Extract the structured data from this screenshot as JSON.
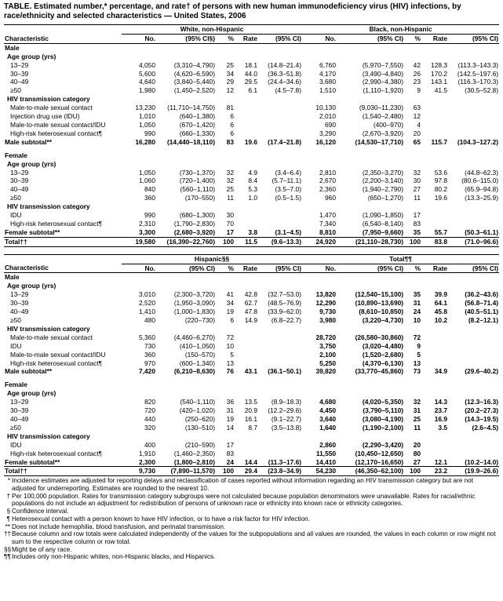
{
  "title": "TABLE. Estimated number,* percentage, and rate† of persons with new human immunodeficiency virus (HIV) infections, by race/ethnicity and selected characteristics — United States, 2006",
  "tables": [
    {
      "groups": [
        "White, non-Hispanic",
        "Black, non-Hispanic"
      ],
      "columns": [
        "Characteristic",
        "No.",
        "(95% CI§)",
        "%",
        "Rate",
        "(95% CI)",
        "No.",
        "(95% CI)",
        "%",
        "Rate",
        "(95% CI)"
      ],
      "rows": [
        {
          "kind": "group",
          "cells": [
            "Male"
          ]
        },
        {
          "kind": "subgroup",
          "cells": [
            "Age group (yrs)"
          ]
        },
        {
          "kind": "item",
          "cells": [
            "13–29",
            "4,050",
            "(3,310–4,790)",
            "25",
            "18.1",
            "(14.8–21.4)",
            "6,760",
            "(5,970–7,550)",
            "42",
            "128.3",
            "(113.3–143.3)"
          ]
        },
        {
          "kind": "item",
          "cells": [
            "30–39",
            "5,600",
            "(4,620–6,590)",
            "34",
            "44.0",
            "(36.3–51.8)",
            "4,170",
            "(3,490–4,840)",
            "26",
            "170.2",
            "(142.5–197.6)"
          ]
        },
        {
          "kind": "item",
          "cells": [
            "40–49",
            "4,640",
            "(3,840–5,440)",
            "29",
            "29.5",
            "(24.4–34.6)",
            "3,680",
            "(2,990–4,380)",
            "23",
            "143.1",
            "(116.3–170.3)"
          ]
        },
        {
          "kind": "item",
          "cells": [
            "≥50",
            "1,980",
            "(1,450–2,520)",
            "12",
            "6.1",
            "(4.5–7.8)",
            "1,510",
            "(1,110–1,920)",
            "9",
            "41.5",
            "(30.5–52.8)"
          ]
        },
        {
          "kind": "subgroup",
          "cells": [
            "HIV transmission category"
          ]
        },
        {
          "kind": "item",
          "cells": [
            "Male-to-male sexual contact",
            "13,230",
            "(11,710–14,750)",
            "81",
            null,
            null,
            "10,130",
            "(9,030–11,230)",
            "63",
            null,
            null
          ]
        },
        {
          "kind": "item",
          "cells": [
            "Injection drug use (IDU)",
            "1,010",
            "(640–1,380)",
            "6",
            null,
            null,
            "2,010",
            "(1,540–2,480)",
            "12",
            null,
            null
          ]
        },
        {
          "kind": "item",
          "cells": [
            "Male-to-male sexual contact/IDU",
            "1,050",
            "(670–1,420)",
            "6",
            null,
            null,
            "690",
            "(400–970)",
            "4",
            null,
            null
          ]
        },
        {
          "kind": "item",
          "cells": [
            "High-risk heterosexual contact¶",
            "990",
            "(660–1,330)",
            "6",
            null,
            null,
            "3,290",
            "(2,670–3,920)",
            "20",
            null,
            null
          ]
        },
        {
          "kind": "subtotal",
          "cells": [
            "Male subtotal**",
            "16,280",
            "(14,440–18,110)",
            "83",
            "19.6",
            "(17.4–21.8)",
            "16,120",
            "(14,530–17,710)",
            "65",
            "115.7",
            "(104.3–127.2)"
          ]
        },
        {
          "kind": "group",
          "cells": [
            "Female"
          ]
        },
        {
          "kind": "subgroup",
          "cells": [
            "Age group (yrs)"
          ]
        },
        {
          "kind": "item",
          "cells": [
            "13–29",
            "1,050",
            "(730–1,370)",
            "32",
            "4.9",
            "(3.4–6.4)",
            "2,810",
            "(2,350–3,270)",
            "32",
            "53.6",
            "(44.8–62.3)"
          ]
        },
        {
          "kind": "item",
          "cells": [
            "30–39",
            "1,060",
            "(720–1,400)",
            "32",
            "8.4",
            "(5.7–11.1)",
            "2,670",
            "(2,200–3,140)",
            "30",
            "97.8",
            "(80.6–115.0)"
          ]
        },
        {
          "kind": "item",
          "cells": [
            "40–49",
            "840",
            "(560–1,110)",
            "25",
            "5.3",
            "(3.5–7.0)",
            "2,360",
            "(1,940–2,790)",
            "27",
            "80.2",
            "(65.9–94.8)"
          ]
        },
        {
          "kind": "item",
          "cells": [
            "≥50",
            "360",
            "(170–550)",
            "11",
            "1.0",
            "(0.5–1.5)",
            "960",
            "(650–1,270)",
            "11",
            "19.6",
            "(13.3–25.9)"
          ]
        },
        {
          "kind": "subgroup",
          "cells": [
            "HIV transmission category"
          ]
        },
        {
          "kind": "item",
          "cells": [
            "IDU",
            "990",
            "(680–1,300)",
            "30",
            null,
            null,
            "1,470",
            "(1,090–1,850)",
            "17",
            null,
            null
          ]
        },
        {
          "kind": "item",
          "cells": [
            "High-risk heterosexual contact¶",
            "2,310",
            "(1,790–2,830)",
            "70",
            null,
            null,
            "7,340",
            "(6,540–8,140)",
            "83",
            null,
            null
          ]
        },
        {
          "kind": "subtotal",
          "cells": [
            "Female subtotal**",
            "3,300",
            "(2,680–3,920)",
            "17",
            "3.8",
            "(3.1–4.5)",
            "8,810",
            "(7,950–9,660)",
            "35",
            "55.7",
            "(50.3–61.1)"
          ]
        },
        {
          "kind": "total",
          "cells": [
            "Total††",
            "19,580",
            "(16,390–22,760)",
            "100",
            "11.5",
            "(9.6–13.3)",
            "24,920",
            "(21,110–28,730)",
            "100",
            "83.8",
            "(71.0–96.6)"
          ]
        }
      ]
    },
    {
      "groups": [
        "Hispanic§§",
        "Total¶¶"
      ],
      "columns": [
        "Characteristic",
        "No.",
        "(95% CI)",
        "%",
        "Rate",
        "(95% CI)",
        "No.",
        "(95% CI)",
        "%",
        "Rate",
        "(95% CI)"
      ],
      "rows": [
        {
          "kind": "group",
          "cells": [
            "Male"
          ]
        },
        {
          "kind": "subgroup",
          "cells": [
            "Age group (yrs)"
          ]
        },
        {
          "kind": "item",
          "cells": [
            "13–29",
            "3,010",
            "(2,300–3,720)",
            "41",
            "42.8",
            "(32.7–53.0)",
            "13,820",
            "(12,540–15,100)",
            "35",
            "39.9",
            "(36.2–43.6)"
          ]
        },
        {
          "kind": "item",
          "cells": [
            "30–39",
            "2,520",
            "(1,950–3,090)",
            "34",
            "62.7",
            "(48.5–76.9)",
            "12,290",
            "(10,890–13,690)",
            "31",
            "64.1",
            "(56.8–71.4)"
          ]
        },
        {
          "kind": "item",
          "cells": [
            "40–49",
            "1,410",
            "(1,000–1,830)",
            "19",
            "47.8",
            "(33.9–62.0)",
            "9,730",
            "(8,610–10,850)",
            "24",
            "45.8",
            "(40.5–51.1)"
          ]
        },
        {
          "kind": "item",
          "cells": [
            "≥50",
            "480",
            "(220–730)",
            "6",
            "14.9",
            "(6.8–22.7)",
            "3,980",
            "(3,220–4,730)",
            "10",
            "10.2",
            "(8.2–12.1)"
          ]
        },
        {
          "kind": "subgroup",
          "cells": [
            "HIV transmission category"
          ]
        },
        {
          "kind": "item",
          "cells": [
            "Male-to-male sexual contact",
            "5,360",
            "(4,460–6,270)",
            "72",
            null,
            null,
            "28,720",
            "(26,580–30,860)",
            "72",
            null,
            null
          ]
        },
        {
          "kind": "item",
          "cells": [
            "IDU",
            "730",
            "(410–1,050)",
            "10",
            null,
            null,
            "3,750",
            "(3,020–4,480)",
            "9",
            null,
            null
          ]
        },
        {
          "kind": "item",
          "cells": [
            "Male-to-male sexual contact/IDU",
            "360",
            "(150–570)",
            "5",
            null,
            null,
            "2,100",
            "(1,520–2,680)",
            "5",
            null,
            null
          ]
        },
        {
          "kind": "item",
          "cells": [
            "High-risk heterosexual contact¶",
            "970",
            "(600–1,340)",
            "13",
            null,
            null,
            "5,250",
            "(4,370–6,130)",
            "13",
            null,
            null
          ]
        },
        {
          "kind": "subtotal",
          "cells": [
            "Male subtotal**",
            "7,420",
            "(6,210–8,630)",
            "76",
            "43.1",
            "(36.1–50.1)",
            "39,820",
            "(33,770–45,860)",
            "73",
            "34.9",
            "(29.6–40.2)"
          ]
        },
        {
          "kind": "group",
          "cells": [
            "Female"
          ]
        },
        {
          "kind": "subgroup",
          "cells": [
            "Age group (yrs)"
          ]
        },
        {
          "kind": "item",
          "cells": [
            "13–29",
            "820",
            "(540–1,110)",
            "36",
            "13.5",
            "(8.9–18.3)",
            "4,680",
            "(4,020–5,350)",
            "32",
            "14.3",
            "(12.3–16.3)"
          ]
        },
        {
          "kind": "item",
          "cells": [
            "30–39",
            "720",
            "(420–1,020)",
            "31",
            "20.9",
            "(12.2–29.6)",
            "4,450",
            "(3,790–5,110)",
            "31",
            "23.7",
            "(20.2–27.3)"
          ]
        },
        {
          "kind": "item",
          "cells": [
            "40–49",
            "440",
            "(250–620)",
            "19",
            "16.1",
            "(9.1–22.7)",
            "3,640",
            "(3,080–4,190)",
            "25",
            "16.9",
            "(14.3–19.5)"
          ]
        },
        {
          "kind": "item",
          "cells": [
            "≥50",
            "320",
            "(130–510)",
            "14",
            "8.7",
            "(3.5–13.8)",
            "1,640",
            "(1,190–2,100)",
            "11",
            "3.5",
            "(2.6–4.5)"
          ]
        },
        {
          "kind": "subgroup",
          "cells": [
            "HIV transmission category"
          ]
        },
        {
          "kind": "item",
          "cells": [
            "IDU",
            "400",
            "(210–590)",
            "17",
            null,
            null,
            "2,860",
            "(2,290–3,420)",
            "20",
            null,
            null
          ]
        },
        {
          "kind": "item",
          "cells": [
            "High-risk heterosexual contact¶",
            "1,910",
            "(1,460–2,350)",
            "83",
            null,
            null,
            "11,550",
            "(10,450–12,650)",
            "80",
            null,
            null
          ]
        },
        {
          "kind": "subtotal",
          "cells": [
            "Female subtotal**",
            "2,300",
            "(1,800–2,810)",
            "24",
            "14.4",
            "(11.3–17.6)",
            "14,410",
            "(12,170–16,650)",
            "27",
            "12.1",
            "(10.2–14.0)"
          ]
        },
        {
          "kind": "total",
          "cells": [
            "Total††",
            "9,730",
            "(7,890–11,570)",
            "100",
            "29.4",
            "(23.8–34.9)",
            "54,230",
            "(46,350–62,100)",
            "100",
            "23.2",
            "(19.9–26.6)"
          ]
        }
      ]
    }
  ],
  "footnotes": [
    {
      "mark": "*",
      "text": "Incidence estimates are adjusted for reporting delays and reclassification of cases reported without information regarding an HIV transmission category but are not adjusted for underreporting. Estimates are rounded to the nearest 10."
    },
    {
      "mark": "†",
      "text": "Per 100,000 population. Rates for transmission category subgroups were not calculated because population denominators were unavailable. Rates for racial/ethnic populations do not include an adjustment for redistribution of persons of unknown race or ethnicity into known race or ethnicity categories."
    },
    {
      "mark": "§",
      "text": "Confidence interval."
    },
    {
      "mark": "¶",
      "text": "Heterosexual contact with a person known to have HIV infection, or to have a risk factor for HIV infection."
    },
    {
      "mark": "**",
      "text": "Does not include hemophilia, blood transfusion, and perinatal transmission."
    },
    {
      "mark": "††",
      "text": "Because column and row totals were calculated independently of the values for the subpopulations and all values are rounded, the values in each column or row might not sum to the respective column or row total."
    },
    {
      "mark": "§§",
      "text": "Might be of any race."
    },
    {
      "mark": "¶¶",
      "text": "Includes only non-Hispanic whites, non-Hispanic blacks, and Hispanics."
    }
  ]
}
